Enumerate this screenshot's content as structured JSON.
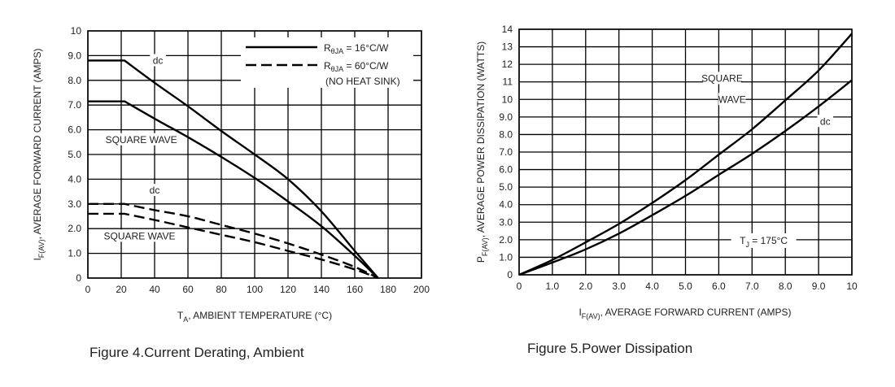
{
  "chart_data": [
    {
      "type": "line",
      "title": "Figure 4.Current Derating, Ambient",
      "xlabel": {
        "main": "T",
        "sub": "A",
        "rest": ", AMBIENT TEMPERATURE (°C)"
      },
      "ylabel": {
        "main": "I",
        "sub": "F(AV)",
        "rest": ", AVERAGE FORWARD CURRENT (AMPS)"
      },
      "xlim": [
        0,
        200
      ],
      "ylim": [
        0,
        10
      ],
      "x_ticks": [
        "0",
        "20",
        "40",
        "60",
        "80",
        "100",
        "120",
        "140",
        "160",
        "180",
        "200"
      ],
      "y_ticks": [
        "0",
        "1.0",
        "2.0",
        "3.0",
        "4.0",
        "5.0",
        "6.0",
        "7.0",
        "8.0",
        "9.0",
        "10"
      ],
      "grid": true,
      "legend": [
        {
          "style": "solid",
          "pre": "R",
          "sub": "θJA",
          "post": " = 16°C/W"
        },
        {
          "style": "dashed",
          "pre": "R",
          "sub": "θJA",
          "post": " = 60°C/W"
        },
        {
          "style": "none",
          "pre": "(NO HEAT SINK)",
          "sub": "",
          "post": ""
        }
      ],
      "legend_position": "top-right",
      "series": [
        {
          "name": "dc (RθJA = 16°C/W)",
          "style": "solid",
          "x": [
            0,
            22,
            40,
            60,
            80,
            100,
            120,
            140,
            160,
            174
          ],
          "y": [
            8.8,
            8.8,
            7.9,
            6.95,
            5.95,
            5.0,
            4.0,
            2.7,
            1.1,
            0
          ]
        },
        {
          "name": "square wave (RθJA = 16°C/W)",
          "style": "solid",
          "x": [
            0,
            22,
            40,
            60,
            80,
            100,
            120,
            140,
            160,
            174
          ],
          "y": [
            7.15,
            7.15,
            6.45,
            5.7,
            4.9,
            4.05,
            3.1,
            2.1,
            0.9,
            0
          ]
        },
        {
          "name": "dc (RθJA = 60°C/W)",
          "style": "dashed",
          "x": [
            0,
            22,
            40,
            60,
            80,
            100,
            120,
            140,
            160,
            174
          ],
          "y": [
            3.0,
            3.0,
            2.75,
            2.5,
            2.15,
            1.8,
            1.4,
            0.95,
            0.45,
            0
          ]
        },
        {
          "name": "square wave (RθJA = 60°C/W)",
          "style": "dashed",
          "x": [
            0,
            22,
            40,
            60,
            80,
            100,
            120,
            140,
            160,
            174
          ],
          "y": [
            2.6,
            2.6,
            2.35,
            2.05,
            1.75,
            1.45,
            1.1,
            0.75,
            0.35,
            0
          ]
        }
      ],
      "annotations": [
        {
          "text": "dc",
          "x": 42,
          "y": 8.8
        },
        {
          "text": "SQUARE WAVE",
          "x": 32,
          "y": 5.6
        },
        {
          "text": "dc",
          "x": 40,
          "y": 3.55
        },
        {
          "text": "SQUARE WAVE",
          "x": 31,
          "y": 1.7
        }
      ]
    },
    {
      "type": "line",
      "title": "Figure 5.Power Dissipation",
      "xlabel": {
        "main": "I",
        "sub": "F(AV)",
        "rest": ", AVERAGE FORWARD CURRENT (AMPS)"
      },
      "ylabel": {
        "main": "P",
        "sub": "F(AV)",
        "rest": ", AVERAGE POWER DISSIPATION (WATTS)"
      },
      "xlim": [
        0,
        10
      ],
      "ylim": [
        0,
        14
      ],
      "x_ticks": [
        "0",
        "1.0",
        "2.0",
        "3.0",
        "4.0",
        "5.0",
        "6.0",
        "7.0",
        "8.0",
        "9.0",
        "10"
      ],
      "y_ticks": [
        "0",
        "1.0",
        "2.0",
        "3.0",
        "4.0",
        "5.0",
        "6.0",
        "7.0",
        "8.0",
        "9.0",
        "10",
        "11",
        "12",
        "13",
        "14"
      ],
      "grid": true,
      "series": [
        {
          "name": "SQUARE WAVE",
          "x": [
            0,
            1,
            2,
            3,
            4,
            5,
            6,
            7,
            8,
            9,
            10
          ],
          "y": [
            0,
            0.85,
            1.85,
            2.9,
            4.1,
            5.4,
            6.85,
            8.3,
            9.95,
            11.65,
            13.75
          ]
        },
        {
          "name": "dc",
          "x": [
            0,
            1,
            2,
            3,
            4,
            5,
            6,
            7,
            8,
            9,
            10
          ],
          "y": [
            0,
            0.7,
            1.45,
            2.35,
            3.4,
            4.5,
            5.7,
            6.9,
            8.2,
            9.6,
            11.1
          ]
        }
      ],
      "annotations": [
        {
          "text": "SQUARE",
          "x": 6.1,
          "y": 11.2
        },
        {
          "text": "WAVE",
          "x": 6.4,
          "y": 10.0
        },
        {
          "text": "dc",
          "x": 9.2,
          "y": 8.75
        },
        {
          "main": "T",
          "sub": "J",
          "rest": " = 175°C",
          "x": 7.35,
          "y": 1.95
        }
      ]
    }
  ]
}
